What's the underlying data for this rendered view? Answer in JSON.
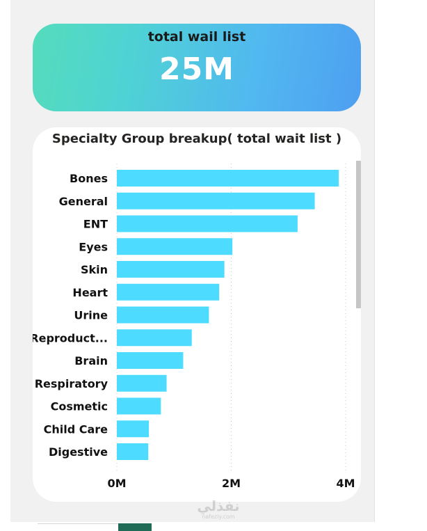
{
  "kpi": {
    "title": "total wail list",
    "value": "25M"
  },
  "chart_title": "Specialty Group breakup( total wait list )",
  "colors": {
    "bar": "#4ddcff",
    "gradient_start": "#55dcbc",
    "gradient_end": "#4e9ff0",
    "scrollbar": "#c6c6c6"
  },
  "watermark": {
    "main": "نفذلي",
    "sub": "nafezly.com"
  },
  "chart_data": {
    "type": "bar",
    "orientation": "horizontal",
    "title": "Specialty Group breakup( total wait list )",
    "categories": [
      "Bones",
      "General",
      "ENT",
      "Eyes",
      "Skin",
      "Heart",
      "Urine",
      "Reproduct...",
      "Brain",
      "Respiratory",
      "Cosmetic",
      "Child Care",
      "Digestive"
    ],
    "values": [
      3.88,
      3.46,
      3.16,
      2.02,
      1.88,
      1.79,
      1.61,
      1.31,
      1.16,
      0.87,
      0.77,
      0.56,
      0.55
    ],
    "units": "M",
    "xlim": [
      0,
      4
    ],
    "ticks": [
      0,
      2,
      4
    ],
    "tick_labels": [
      "0M",
      "2M",
      "4M"
    ],
    "grid": "vertical dotted",
    "legend": "none"
  }
}
